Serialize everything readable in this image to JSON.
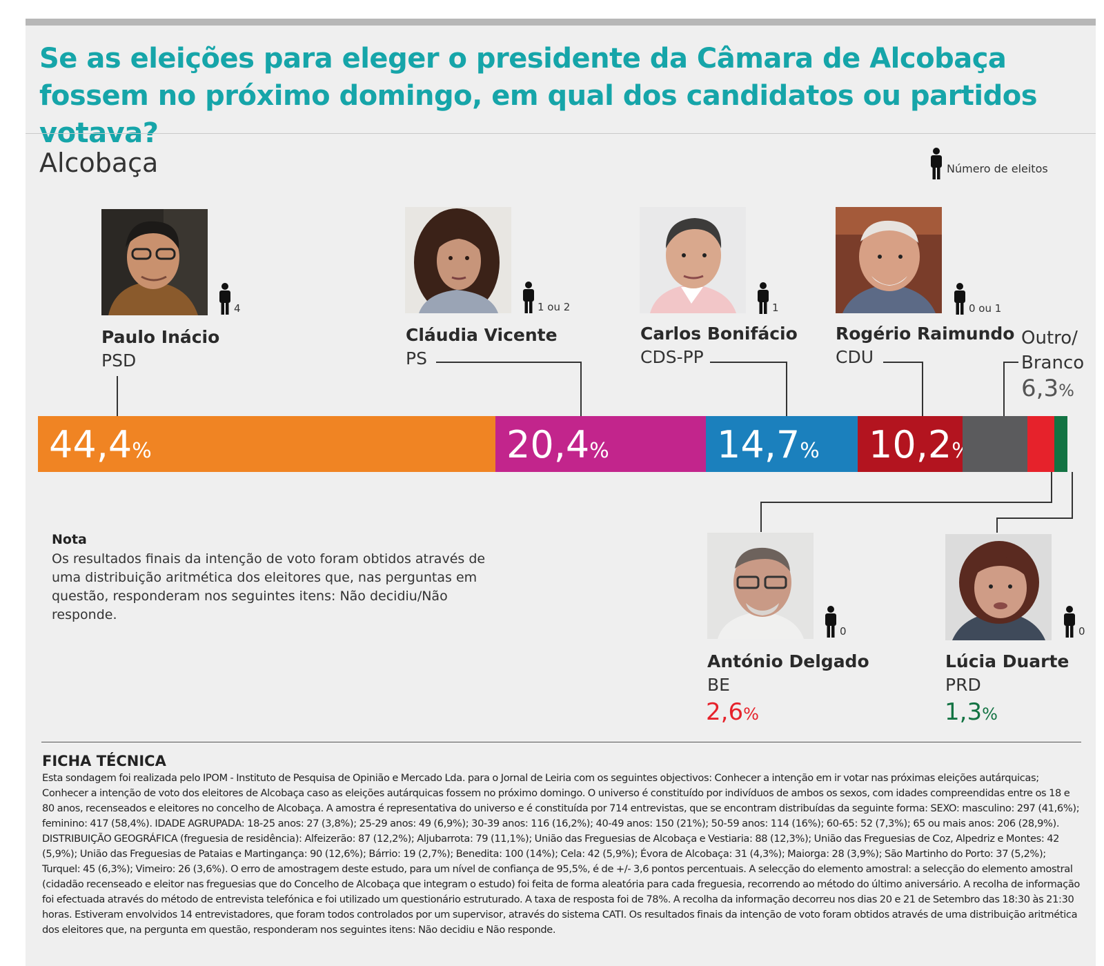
{
  "title": "Se as eleições para eleger o presidente da Câmara de Alcobaça fossem no próximo domingo, em qual dos candidatos ou partidos votava?",
  "region": "Alcobaça",
  "legend": {
    "text": "Número de eleitos",
    "icon": "person-icon"
  },
  "candidates": [
    {
      "name": "Paulo Inácio",
      "party": "PSD",
      "seats": "4"
    },
    {
      "name": "Cláudia Vicente",
      "party": "PS",
      "seats": "1 ou 2"
    },
    {
      "name": "Carlos Bonifácio",
      "party": "CDS-PP",
      "seats": "1"
    },
    {
      "name": "Rogério Raimundo",
      "party": "CDU",
      "seats": "0 ou 1"
    },
    {
      "name": "António Delgado",
      "party": "BE",
      "seats": "0",
      "value_text": "2,6"
    },
    {
      "name": "Lúcia Duarte",
      "party": "PRD",
      "seats": "0",
      "value_text": "1,3"
    }
  ],
  "outro": {
    "line1": "Outro/",
    "line2": "Branco",
    "value_text": "6,3"
  },
  "percent_sign": "%",
  "chart_data": {
    "type": "bar",
    "orientation": "horizontal-stacked",
    "title": "Se as eleições para eleger o presidente da Câmara de Alcobaça fossem no próximo domingo, em qual dos candidatos ou partidos votava?",
    "categories": [
      "PSD",
      "PS",
      "CDS-PP",
      "CDU",
      "Outro/Branco",
      "BE",
      "PRD"
    ],
    "values": [
      44.4,
      20.4,
      14.7,
      10.2,
      6.3,
      2.6,
      1.3
    ],
    "labels": [
      "44,4",
      "20,4",
      "14,7",
      "10,2",
      "6,3",
      "2,6",
      "1,3"
    ],
    "colors": [
      "#f08423",
      "#c2258c",
      "#1b80bd",
      "#b3141f",
      "#5b5b5d",
      "#e6222b",
      "#137343"
    ],
    "unit": "%"
  },
  "note": {
    "title": "Nota",
    "text": "Os resultados finais da intenção de voto foram obtidos através de uma distribuição aritmética dos eleitores que, nas perguntas em questão, responderam nos seguintes itens: Não decidiu/Não responde."
  },
  "ficha": {
    "title": "FICHA TÉCNICA",
    "text": "Esta sondagem foi realizada pelo IPOM - Instituto de Pesquisa de Opinião e Mercado Lda. para o Jornal de Leiria com os seguintes objectivos: Conhecer a intenção em ir votar nas próximas eleições autárquicas; Conhecer a intenção de voto dos eleitores de Alcobaça caso as eleições autárquicas fossem no próximo domingo. O universo é constituído por indivíduos de ambos os sexos, com idades compreendidas entre os 18 e 80 anos, recenseados e eleitores no concelho de Alcobaça. A amostra é representativa do universo e é constituída por 714 entrevistas, que se encontram distribuídas da seguinte forma: SEXO: masculino: 297 (41,6%); feminino: 417 (58,4%). IDADE AGRUPADA: 18-25 anos: 27 (3,8%); 25-29 anos: 49 (6,9%); 30-39 anos: 116 (16,2%); 40-49 anos: 150 (21%); 50-59 anos: 114 (16%); 60-65: 52 (7,3%); 65 ou mais anos: 206 (28,9%). DISTRIBUIÇÃO GEOGRÁFICA (freguesia de residência): Alfeizerão: 87 (12,2%); Aljubarrota: 79 (11,1%); União das Freguesias de Alcobaça e Vestiaria: 88 (12,3%); União das Freguesias de Coz, Alpedriz e Montes: 42 (5,9%); União das Freguesias de Pataias e Martingança: 90 (12,6%); Bárrio: 19 (2,7%); Benedita: 100 (14%); Cela: 42 (5,9%); Évora de Alcobaça: 31 (4,3%); Maiorga: 28 (3,9%); São Martinho do Porto: 37 (5,2%); Turquel: 45 (6,3%); Vimeiro: 26 (3,6%). O erro de amostragem deste estudo, para um nível de confiança de 95,5%, é de +/- 3,6 pontos percentuais. A selecção do elemento amostral: a selecção do elemento amostral (cidadão recenseado e eleitor nas freguesias que do Concelho de Alcobaça que integram o estudo) foi feita de forma aleatória para cada freguesia, recorrendo ao método do último aniversário. A recolha de informação foi efectuada através do método de entrevista telefónica e foi utilizado um questionário estruturado. A taxa de resposta foi de 78%. A recolha da informação decorreu nos dias 20 e 21 de Setembro das 18:30 às 21:30 horas. Estiveram envolvidos 14 entrevistadores, que foram todos controlados por um supervisor, através do sistema CATI. Os resultados finais da intenção de voto foram obtidos através de uma distribuição aritmética dos eleitores que, na pergunta em questão, responderam nos seguintes itens: Não decidiu e Não responde."
  }
}
